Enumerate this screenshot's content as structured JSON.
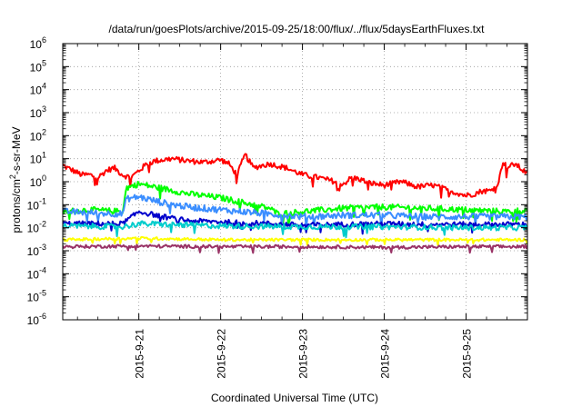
{
  "chart_data": {
    "type": "line",
    "title": "/data/run/goesPlots/archive/2015-09-25/18:00/flux/../flux/5daysEarthFluxes.txt",
    "xlabel": "Coordinated Universal Time (UTC)",
    "ylabel": {
      "before": "protons/cm",
      "sup": "2",
      "after": "-s-sr-MeV"
    },
    "y_scale": "log",
    "ylim_exponents": [
      -6,
      6
    ],
    "y_ticks": [
      {
        "base": "10",
        "exp": "-6"
      },
      {
        "base": "10",
        "exp": "-5"
      },
      {
        "base": "10",
        "exp": "-4"
      },
      {
        "base": "10",
        "exp": "-3"
      },
      {
        "base": "10",
        "exp": "-2"
      },
      {
        "base": "10",
        "exp": "-1"
      },
      {
        "base": "10",
        "exp": "0"
      },
      {
        "base": "10",
        "exp": "1"
      },
      {
        "base": "10",
        "exp": "2"
      },
      {
        "base": "10",
        "exp": "3"
      },
      {
        "base": "10",
        "exp": "4"
      },
      {
        "base": "10",
        "exp": "5"
      },
      {
        "base": "10",
        "exp": "6"
      }
    ],
    "x_ticks": [
      "2015-9-21",
      "2015-9-22",
      "2015-9-23",
      "2015-9-24",
      "2015-9-25"
    ],
    "x_tick_days": [
      21,
      22,
      23,
      24,
      25
    ],
    "xlim_days": [
      20.07,
      25.75
    ],
    "grid": true,
    "grid_style": "dotted",
    "series": [
      {
        "color": "#ff0000",
        "noise": 0.12,
        "points": [
          [
            20.07,
            5.0
          ],
          [
            20.2,
            3.0
          ],
          [
            20.3,
            2.0
          ],
          [
            20.4,
            2.0
          ],
          [
            20.5,
            1.5
          ],
          [
            20.6,
            3.0
          ],
          [
            20.7,
            4.0
          ],
          [
            20.8,
            2.0
          ],
          [
            20.9,
            1.5
          ],
          [
            21.0,
            3.0
          ],
          [
            21.1,
            6.0
          ],
          [
            21.2,
            8.0
          ],
          [
            21.4,
            10.0
          ],
          [
            21.6,
            8.0
          ],
          [
            21.8,
            7.0
          ],
          [
            22.0,
            9.0
          ],
          [
            22.1,
            6.0
          ],
          [
            22.2,
            2.0
          ],
          [
            22.3,
            15.0
          ],
          [
            22.4,
            4.0
          ],
          [
            22.5,
            5.0
          ],
          [
            22.6,
            6.0
          ],
          [
            22.8,
            4.0
          ],
          [
            23.0,
            2.0
          ],
          [
            23.2,
            1.5
          ],
          [
            23.4,
            1.0
          ],
          [
            23.5,
            0.8
          ],
          [
            23.6,
            1.5
          ],
          [
            23.7,
            1.3
          ],
          [
            23.8,
            0.9
          ],
          [
            24.0,
            0.7
          ],
          [
            24.2,
            1.0
          ],
          [
            24.3,
            0.8
          ],
          [
            24.4,
            0.6
          ],
          [
            24.6,
            0.7
          ],
          [
            24.8,
            0.4
          ],
          [
            25.0,
            0.25
          ],
          [
            25.1,
            0.3
          ],
          [
            25.2,
            0.4
          ],
          [
            25.3,
            0.4
          ],
          [
            25.4,
            1.0
          ],
          [
            25.45,
            8.0
          ],
          [
            25.5,
            4.0
          ],
          [
            25.6,
            6.0
          ],
          [
            25.7,
            3.0
          ],
          [
            25.75,
            2.5
          ]
        ]
      },
      {
        "color": "#00ff00",
        "noise": 0.13,
        "points": [
          [
            20.07,
            0.05
          ],
          [
            20.4,
            0.06
          ],
          [
            20.8,
            0.05
          ],
          [
            20.85,
            0.55
          ],
          [
            21.0,
            0.8
          ],
          [
            21.3,
            0.5
          ],
          [
            21.6,
            0.3
          ],
          [
            22.0,
            0.2
          ],
          [
            22.3,
            0.12
          ],
          [
            22.6,
            0.07
          ],
          [
            22.7,
            0.04
          ],
          [
            23.0,
            0.05
          ],
          [
            23.5,
            0.07
          ],
          [
            24.0,
            0.08
          ],
          [
            24.5,
            0.07
          ],
          [
            25.0,
            0.06
          ],
          [
            25.5,
            0.05
          ],
          [
            25.75,
            0.06
          ]
        ]
      },
      {
        "color": "#3b8eff",
        "noise": 0.14,
        "points": [
          [
            20.07,
            0.05
          ],
          [
            20.8,
            0.04
          ],
          [
            20.85,
            0.18
          ],
          [
            21.0,
            0.22
          ],
          [
            21.3,
            0.12
          ],
          [
            21.6,
            0.08
          ],
          [
            22.0,
            0.06
          ],
          [
            22.6,
            0.04
          ],
          [
            23.0,
            0.03
          ],
          [
            23.5,
            0.035
          ],
          [
            24.0,
            0.035
          ],
          [
            24.5,
            0.03
          ],
          [
            25.0,
            0.03
          ],
          [
            25.75,
            0.03
          ]
        ]
      },
      {
        "color": "#0000cc",
        "noise": 0.11,
        "points": [
          [
            20.07,
            0.015
          ],
          [
            20.8,
            0.015
          ],
          [
            21.0,
            0.05
          ],
          [
            21.3,
            0.03
          ],
          [
            21.6,
            0.02
          ],
          [
            22.0,
            0.018
          ],
          [
            22.6,
            0.015
          ],
          [
            23.0,
            0.013
          ],
          [
            23.5,
            0.014
          ],
          [
            24.0,
            0.015
          ],
          [
            24.5,
            0.014
          ],
          [
            25.0,
            0.014
          ],
          [
            25.75,
            0.014
          ]
        ]
      },
      {
        "color": "#00cccc",
        "noise": 0.12,
        "points": [
          [
            20.07,
            0.012
          ],
          [
            20.8,
            0.011
          ],
          [
            21.0,
            0.015
          ],
          [
            22.0,
            0.012
          ],
          [
            23.0,
            0.011
          ],
          [
            24.0,
            0.011
          ],
          [
            25.0,
            0.01
          ],
          [
            25.75,
            0.01
          ]
        ]
      },
      {
        "color": "#ffff00",
        "noise": 0.06,
        "points": [
          [
            20.07,
            0.003
          ],
          [
            21.0,
            0.0035
          ],
          [
            22.0,
            0.003
          ],
          [
            23.0,
            0.003
          ],
          [
            24.0,
            0.003
          ],
          [
            25.0,
            0.003
          ],
          [
            25.75,
            0.003
          ]
        ]
      },
      {
        "color": "#993366",
        "noise": 0.07,
        "points": [
          [
            20.07,
            0.0015
          ],
          [
            21.0,
            0.0016
          ],
          [
            22.0,
            0.0015
          ],
          [
            23.0,
            0.0015
          ],
          [
            24.0,
            0.0014
          ],
          [
            25.0,
            0.0015
          ],
          [
            25.75,
            0.0015
          ]
        ]
      }
    ]
  }
}
